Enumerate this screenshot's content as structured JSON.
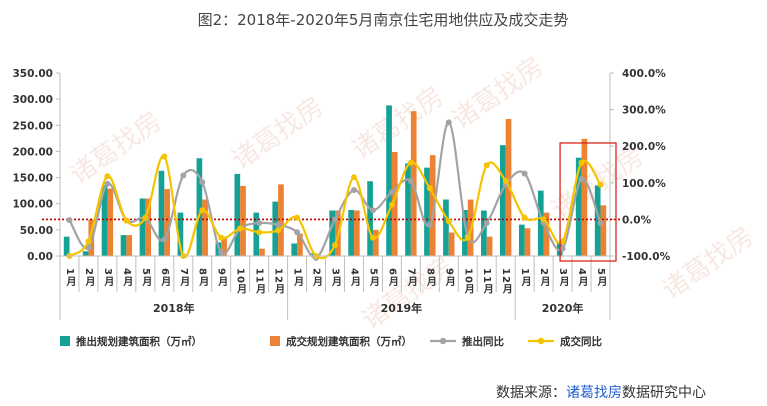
{
  "title": "图2：2018年-2020年5月南京住宅用地供应及成交走势",
  "source": {
    "prefix": "数据来源：",
    "brand": "诸葛找房",
    "suffix": "数据研究中心"
  },
  "watermark": "诸葛找房",
  "colors": {
    "supply_bar": "#15a196",
    "deal_bar": "#ec8233",
    "supply_line": "#a3a3a3",
    "deal_line": "#f4c400",
    "ref_line": "#c00000",
    "highlight": "#d9261c"
  },
  "chart_data": {
    "type": "bar+line",
    "title": "图2：2018年-2020年5月南京住宅用地供应及成交走势",
    "categories": [
      "1月",
      "2月",
      "3月",
      "4月",
      "5月",
      "6月",
      "7月",
      "8月",
      "9月",
      "10月",
      "11月",
      "12月",
      "1月",
      "2月",
      "3月",
      "4月",
      "5月",
      "6月",
      "7月",
      "8月",
      "9月",
      "10月",
      "11月",
      "12月",
      "1月",
      "2月",
      "3月",
      "4月",
      "5月"
    ],
    "year_groups": [
      {
        "label": "2018年",
        "count": 12
      },
      {
        "label": "2019年",
        "count": 12
      },
      {
        "label": "2020年",
        "count": 5
      }
    ],
    "left_axis": {
      "ylim": [
        0,
        350
      ],
      "ticks": [
        "0.00",
        "50.00",
        "100.00",
        "150.00",
        "200.00",
        "250.00",
        "300.00",
        "350.00"
      ],
      "tick_values": [
        0,
        50,
        100,
        150,
        200,
        250,
        300,
        350
      ]
    },
    "right_axis": {
      "ylim": [
        -100,
        400
      ],
      "ticks": [
        "-100.0%",
        "0.0%",
        "100.0%",
        "200.0%",
        "300.0%",
        "400.0%"
      ],
      "tick_values": [
        -100,
        0,
        100,
        200,
        300,
        400
      ]
    },
    "series": [
      {
        "name": "推出规划建筑面积（万㎡）",
        "type": "bar",
        "axis": "left",
        "values": [
          37,
          9,
          135,
          40,
          110,
          163,
          83,
          187,
          26,
          157,
          83,
          104,
          24,
          5,
          87,
          88,
          143,
          288,
          177,
          169,
          108,
          88,
          87,
          212,
          60,
          125,
          27,
          188,
          135
        ]
      },
      {
        "name": "成交规划建筑面积（万㎡）",
        "type": "bar",
        "axis": "left",
        "values": [
          0,
          70,
          129,
          40,
          110,
          128,
          0,
          108,
          37,
          134,
          14,
          137,
          43,
          0,
          87,
          87,
          50,
          199,
          277,
          193,
          45,
          108,
          37,
          262,
          53,
          83,
          0,
          224,
          97
        ]
      },
      {
        "name": "推出同比",
        "type": "line",
        "axis": "right",
        "values": [
          -2,
          -77,
          97,
          -3,
          3,
          -55,
          120,
          102,
          -90,
          -25,
          -10,
          -15,
          -35,
          -105,
          0,
          80,
          25,
          75,
          105,
          -15,
          265,
          -45,
          -10,
          95,
          125,
          -10,
          -80,
          110,
          -10
        ]
      },
      {
        "name": "成交同比",
        "type": "line",
        "axis": "right",
        "values": [
          -100,
          -60,
          118,
          -3,
          5,
          172,
          -100,
          25,
          -50,
          -25,
          -35,
          -30,
          5,
          -100,
          -70,
          115,
          -50,
          40,
          155,
          85,
          -5,
          -50,
          148,
          105,
          5,
          0,
          -60,
          155,
          95
        ]
      }
    ],
    "reference_line": {
      "axis": "right",
      "value": 0
    },
    "highlight_categories": [
      27,
      28
    ]
  }
}
